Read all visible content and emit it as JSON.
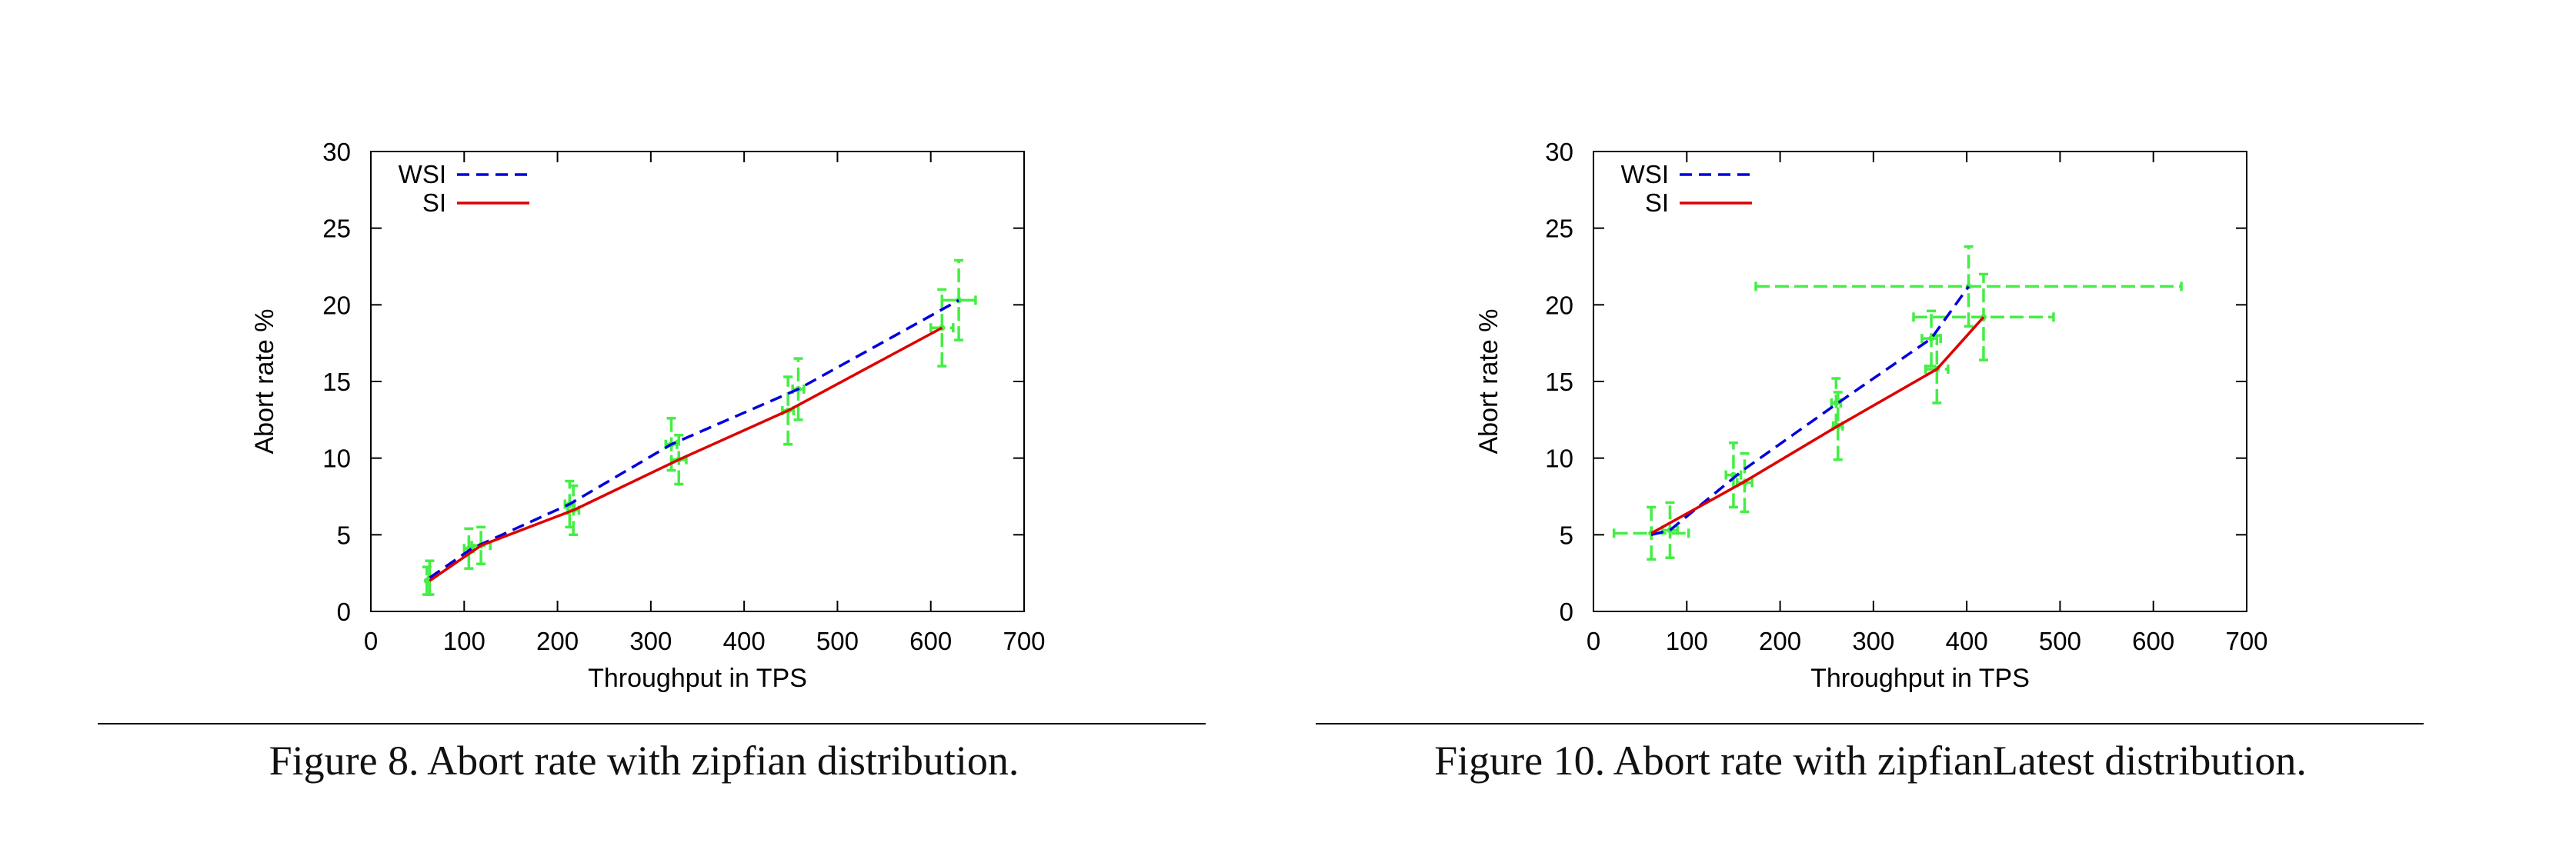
{
  "figures": [
    {
      "caption": "Figure 8.  Abort rate with zipfian distribution.",
      "chart_data": {
        "type": "line",
        "xlabel": "Throughput in TPS",
        "ylabel": "Abort rate %",
        "xlim": [
          0,
          700
        ],
        "ylim": [
          0,
          30
        ],
        "xticks": [
          "0",
          "100",
          "200",
          "300",
          "400",
          "500",
          "600",
          "700"
        ],
        "yticks": [
          "0",
          "5",
          "10",
          "15",
          "20",
          "25",
          "30"
        ],
        "grid": false,
        "legend_position": "top-left",
        "series": [
          {
            "name": "WSI",
            "style": "dashed",
            "color": "#0000dd",
            "x": [
              63,
              108,
              213,
              322,
              458,
              630
            ],
            "y": [
              2.2,
              4.1,
              7.0,
              10.9,
              14.5,
              20.3
            ]
          },
          {
            "name": "SI",
            "style": "solid",
            "color": "#dd0000",
            "x": [
              63,
              118,
              217,
              330,
              447,
              612
            ],
            "y": [
              2.0,
              4.3,
              6.6,
              9.9,
              13.1,
              18.5
            ]
          }
        ],
        "error_bars": {
          "color": "#44ee44",
          "points": [
            {
              "x": 63,
              "y": 2.2,
              "xerr": 0,
              "yerr": 1.1
            },
            {
              "x": 60,
              "y": 2.0,
              "xerr": 0,
              "yerr": 0.9
            },
            {
              "x": 105,
              "y": 4.1,
              "xerr": 5,
              "yerr": 1.3
            },
            {
              "x": 118,
              "y": 4.3,
              "xerr": 10,
              "yerr": 1.2
            },
            {
              "x": 213,
              "y": 7.0,
              "xerr": 5,
              "yerr": 1.5
            },
            {
              "x": 217,
              "y": 6.6,
              "xerr": 6,
              "yerr": 1.6
            },
            {
              "x": 322,
              "y": 10.9,
              "xerr": 6,
              "yerr": 1.7
            },
            {
              "x": 330,
              "y": 9.9,
              "xerr": 8,
              "yerr": 1.6
            },
            {
              "x": 447,
              "y": 13.1,
              "xerr": 6,
              "yerr": 2.2
            },
            {
              "x": 458,
              "y": 14.5,
              "xerr": 6,
              "yerr": 2.0
            },
            {
              "x": 612,
              "y": 18.5,
              "xerr": 12,
              "yerr": 2.5
            },
            {
              "x": 630,
              "y": 20.3,
              "xerr": 18,
              "yerr": 2.6
            }
          ]
        }
      }
    },
    {
      "caption": "Figure 10.  Abort rate with zipfianLatest distribution.",
      "chart_data": {
        "type": "line",
        "xlabel": "Throughput in TPS",
        "ylabel": "Abort rate %",
        "xlim": [
          0,
          700
        ],
        "ylim": [
          0,
          30
        ],
        "xticks": [
          "0",
          "100",
          "200",
          "300",
          "400",
          "500",
          "600",
          "700"
        ],
        "yticks": [
          "0",
          "5",
          "10",
          "15",
          "20",
          "25",
          "30"
        ],
        "grid": false,
        "legend_position": "top-left",
        "series": [
          {
            "name": "WSI",
            "style": "dashed",
            "color": "#0000dd",
            "x": [
              62,
              82,
              160,
              262,
              362,
              402
            ],
            "y": [
              5.0,
              5.3,
              9.2,
              13.6,
              17.8,
              21.2
            ]
          },
          {
            "name": "SI",
            "style": "solid",
            "color": "#dd0000",
            "x": [
              62,
              160,
              262,
              368,
              418
            ],
            "y": [
              5.1,
              8.4,
              12.1,
              15.8,
              19.2
            ]
          }
        ],
        "error_bars": {
          "color": "#44ee44",
          "points": [
            {
              "x": 62,
              "y": 5.1,
              "xerr": 40,
              "yerr": 1.7
            },
            {
              "x": 82,
              "y": 5.3,
              "xerr": 8,
              "yerr": 1.8
            },
            {
              "x": 150,
              "y": 8.9,
              "xerr": 8,
              "yerr": 2.1
            },
            {
              "x": 162,
              "y": 8.4,
              "xerr": 8,
              "yerr": 1.9
            },
            {
              "x": 260,
              "y": 13.6,
              "xerr": 5,
              "yerr": 1.6
            },
            {
              "x": 262,
              "y": 12.1,
              "xerr": 5,
              "yerr": 2.2
            },
            {
              "x": 362,
              "y": 17.8,
              "xerr": 10,
              "yerr": 1.8
            },
            {
              "x": 368,
              "y": 15.8,
              "xerr": 12,
              "yerr": 2.2
            },
            {
              "x": 402,
              "y": 21.2,
              "xerr": 228,
              "yerr": 2.6
            },
            {
              "x": 418,
              "y": 19.2,
              "xerr": 75,
              "yerr": 2.8
            }
          ]
        }
      }
    }
  ]
}
